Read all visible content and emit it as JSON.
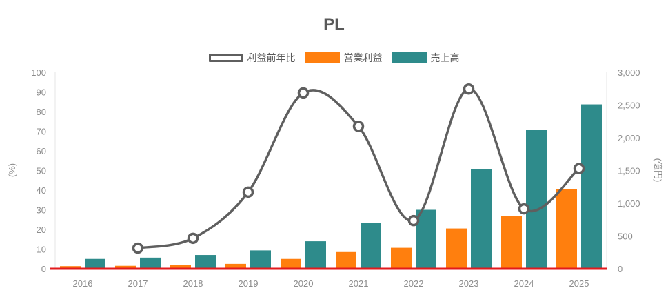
{
  "chart_data": {
    "type": "bar",
    "title": "PL",
    "categories": [
      "2016",
      "2017",
      "2018",
      "2019",
      "2020",
      "2021",
      "2022",
      "2023",
      "2024",
      "2025"
    ],
    "series": [
      {
        "name": "営業利益",
        "type": "bar",
        "axis": "right",
        "color": "#ff7f0e",
        "values": [
          40,
          45,
          55,
          75,
          150,
          255,
          320,
          615,
          805,
          1220
        ]
      },
      {
        "name": "売上高",
        "type": "bar",
        "axis": "right",
        "color": "#2e8b8b",
        "values": [
          150,
          170,
          210,
          280,
          420,
          700,
          900,
          1520,
          2120,
          2510
        ]
      },
      {
        "name": "利益前年比",
        "type": "line",
        "axis": "left",
        "color": "#5f5f5f",
        "values": [
          null,
          10.5,
          15.5,
          39,
          89.5,
          72.5,
          24.5,
          91.5,
          30.5,
          51
        ]
      }
    ],
    "y_left": {
      "label": "(%)",
      "min": 0,
      "max": 100,
      "ticks": [
        "0",
        "10",
        "20",
        "30",
        "40",
        "50",
        "60",
        "70",
        "80",
        "90",
        "100"
      ]
    },
    "y_right": {
      "label": "(億円)",
      "min": 0,
      "max": 3000,
      "ticks": [
        "0",
        "500",
        "1,000",
        "1,500",
        "2,000",
        "2,500",
        "3,000"
      ]
    },
    "baseline_color": "#e31a1c",
    "legend_position": "top",
    "grid": false
  }
}
